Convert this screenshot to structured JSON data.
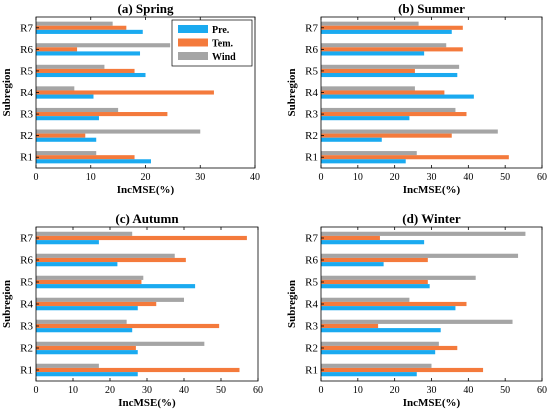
{
  "colors": {
    "Pre.": "#1aaaf0",
    "Tem.": "#f47a3c",
    "Wind": "#a5a5a5"
  },
  "legend": {
    "items": [
      "Pre.",
      "Tem.",
      "Wind"
    ],
    "placement": "top-right of panel (a)"
  },
  "chart_data": [
    {
      "type": "bar",
      "orientation": "horizontal",
      "title": "(a) Spring",
      "xlabel": "IncMSE(%)",
      "ylabel": "Subregion",
      "xlim": [
        0,
        40
      ],
      "xticks": [
        "0",
        "10",
        "20",
        "30",
        "40"
      ],
      "categories": [
        "R1",
        "R2",
        "R3",
        "R4",
        "R5",
        "R6",
        "R7"
      ],
      "series": [
        {
          "name": "Pre.",
          "values": [
            21,
            11,
            11.5,
            10.5,
            20,
            19,
            19.5
          ]
        },
        {
          "name": "Tem.",
          "values": [
            18,
            9,
            24,
            32.5,
            18,
            7.5,
            16.5
          ]
        },
        {
          "name": "Wind",
          "values": [
            11,
            30,
            15,
            7,
            12.5,
            24.5,
            14
          ]
        }
      ]
    },
    {
      "type": "bar",
      "orientation": "horizontal",
      "title": "(b) Summer",
      "xlabel": "IncMSE(%)",
      "ylabel": "Subregion",
      "xlim": [
        0,
        60
      ],
      "xticks": [
        "0",
        "10",
        "20",
        "30",
        "40",
        "50",
        "60"
      ],
      "categories": [
        "R1",
        "R2",
        "R3",
        "R4",
        "R5",
        "R6",
        "R7"
      ],
      "series": [
        {
          "name": "Pre.",
          "values": [
            23,
            16.5,
            24,
            41.5,
            37,
            28,
            35.5
          ]
        },
        {
          "name": "Tem.",
          "values": [
            51,
            35.5,
            39.5,
            33.5,
            25.5,
            38.5,
            38.5
          ]
        },
        {
          "name": "Wind",
          "values": [
            26,
            48,
            36.5,
            25.5,
            37.5,
            34,
            26.5
          ]
        }
      ]
    },
    {
      "type": "bar",
      "orientation": "horizontal",
      "title": "(c) Autumn",
      "xlabel": "IncMSE(%)",
      "ylabel": "Subregion",
      "xlim": [
        0,
        60
      ],
      "xticks": [
        "0",
        "10",
        "20",
        "30",
        "40",
        "50",
        "60"
      ],
      "categories": [
        "R1",
        "R2",
        "R3",
        "R4",
        "R5",
        "R6",
        "R7"
      ],
      "series": [
        {
          "name": "Pre.",
          "values": [
            27.5,
            27.5,
            26,
            27.5,
            43,
            22,
            17
          ]
        },
        {
          "name": "Tem.",
          "values": [
            55,
            27,
            49.5,
            32.5,
            28.5,
            40.5,
            57
          ]
        },
        {
          "name": "Wind",
          "values": [
            17,
            45.5,
            24.5,
            40,
            29,
            37.5,
            26
          ]
        }
      ]
    },
    {
      "type": "bar",
      "orientation": "horizontal",
      "title": "(d) Winter",
      "xlabel": "IncMSE(%)",
      "ylabel": "Subregion",
      "xlim": [
        0,
        60
      ],
      "xticks": [
        "0",
        "10",
        "20",
        "30",
        "40",
        "50",
        "60"
      ],
      "categories": [
        "R1",
        "R2",
        "R3",
        "R4",
        "R5",
        "R6",
        "R7"
      ],
      "series": [
        {
          "name": "Pre.",
          "values": [
            26,
            31,
            32.5,
            36.5,
            29.5,
            17,
            28
          ]
        },
        {
          "name": "Tem.",
          "values": [
            44,
            37,
            15.5,
            39.5,
            29,
            29,
            16
          ]
        },
        {
          "name": "Wind",
          "values": [
            30,
            32,
            52,
            24,
            42,
            53.5,
            55.5
          ]
        }
      ]
    }
  ]
}
